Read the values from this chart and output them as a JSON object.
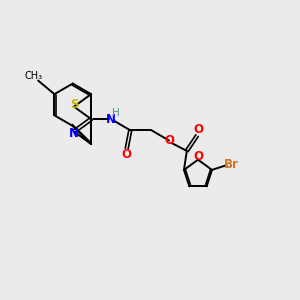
{
  "background_color": "#ebebeb",
  "bond_color": "#000000",
  "sulfur_color": "#c8b400",
  "nitrogen_color": "#0000ff",
  "oxygen_color": "#ff0000",
  "bromine_color": "#cc7722",
  "carbon_color": "#000000",
  "h_color": "#4a9090",
  "figsize": [
    3.0,
    3.0
  ],
  "dpi": 100,
  "xlim": [
    0,
    10
  ],
  "ylim": [
    0,
    10
  ]
}
